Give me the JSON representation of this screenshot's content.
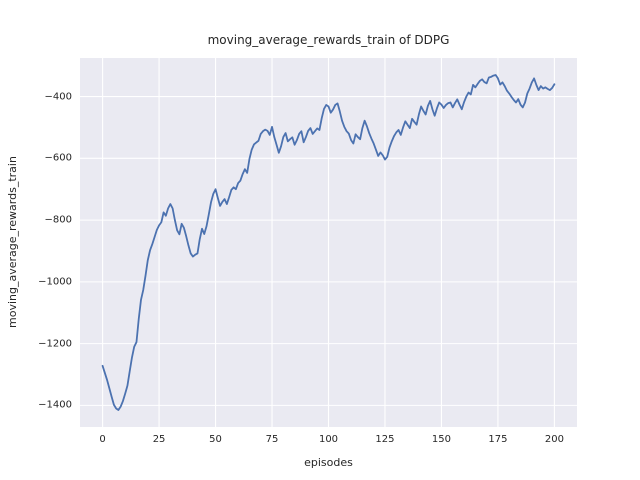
{
  "chart_data": {
    "type": "line",
    "title": "moving_average_rewards_train of DDPG",
    "xlabel": "episodes",
    "ylabel": "moving_average_rewards_train",
    "legend": null,
    "grid": true,
    "background_color": "#EAEAF2",
    "grid_color": "#FFFFFF",
    "line_color": "#4C72B0",
    "text_color": "#262626",
    "xlim": [
      -10,
      210
    ],
    "ylim": [
      -1470,
      -275
    ],
    "xticks": [
      0,
      25,
      50,
      75,
      100,
      125,
      150,
      175,
      200
    ],
    "xtick_labels": [
      "0",
      "25",
      "50",
      "75",
      "100",
      "125",
      "150",
      "175",
      "200"
    ],
    "yticks": [
      -400,
      -600,
      -800,
      -1000,
      -1200,
      -1400
    ],
    "ytick_labels": [
      "−400",
      "−600",
      "−800",
      "−1000",
      "−1200",
      "−1400"
    ],
    "x": [
      0,
      1,
      2,
      3,
      4,
      5,
      6,
      7,
      8,
      9,
      10,
      11,
      12,
      13,
      14,
      15,
      16,
      17,
      18,
      19,
      20,
      21,
      22,
      23,
      24,
      25,
      26,
      27,
      28,
      29,
      30,
      31,
      32,
      33,
      34,
      35,
      36,
      37,
      38,
      39,
      40,
      41,
      42,
      43,
      44,
      45,
      46,
      47,
      48,
      49,
      50,
      51,
      52,
      53,
      54,
      55,
      56,
      57,
      58,
      59,
      60,
      61,
      62,
      63,
      64,
      65,
      66,
      67,
      68,
      69,
      70,
      71,
      72,
      73,
      74,
      75,
      76,
      77,
      78,
      79,
      80,
      81,
      82,
      83,
      84,
      85,
      86,
      87,
      88,
      89,
      90,
      91,
      92,
      93,
      94,
      95,
      96,
      97,
      98,
      99,
      100,
      101,
      102,
      103,
      104,
      105,
      106,
      107,
      108,
      109,
      110,
      111,
      112,
      113,
      114,
      115,
      116,
      117,
      118,
      119,
      120,
      121,
      122,
      123,
      124,
      125,
      126,
      127,
      128,
      129,
      130,
      131,
      132,
      133,
      134,
      135,
      136,
      137,
      138,
      139,
      140,
      141,
      142,
      143,
      144,
      145,
      146,
      147,
      148,
      149,
      150,
      151,
      152,
      153,
      154,
      155,
      156,
      157,
      158,
      159,
      160,
      161,
      162,
      163,
      164,
      165,
      166,
      167,
      168,
      169,
      170,
      171,
      172,
      173,
      174,
      175,
      176,
      177,
      178,
      179,
      180,
      181,
      182,
      183,
      184,
      185,
      186,
      187,
      188,
      189,
      190,
      191,
      192,
      193,
      194,
      195,
      196,
      197,
      198,
      199,
      200
    ],
    "values": [
      -1272,
      -1295,
      -1318,
      -1345,
      -1372,
      -1398,
      -1410,
      -1415,
      -1404,
      -1386,
      -1362,
      -1336,
      -1290,
      -1245,
      -1210,
      -1195,
      -1120,
      -1058,
      -1026,
      -980,
      -930,
      -898,
      -878,
      -855,
      -832,
      -817,
      -807,
      -775,
      -786,
      -762,
      -748,
      -762,
      -800,
      -833,
      -846,
      -812,
      -825,
      -852,
      -882,
      -908,
      -918,
      -912,
      -908,
      -862,
      -828,
      -845,
      -820,
      -782,
      -742,
      -715,
      -700,
      -728,
      -754,
      -741,
      -732,
      -748,
      -726,
      -702,
      -694,
      -700,
      -680,
      -672,
      -651,
      -635,
      -647,
      -602,
      -572,
      -555,
      -549,
      -543,
      -521,
      -512,
      -507,
      -511,
      -524,
      -498,
      -531,
      -556,
      -582,
      -561,
      -531,
      -518,
      -545,
      -538,
      -532,
      -556,
      -541,
      -521,
      -512,
      -548,
      -531,
      -511,
      -502,
      -521,
      -512,
      -503,
      -508,
      -470,
      -440,
      -427,
      -432,
      -452,
      -442,
      -427,
      -422,
      -448,
      -478,
      -498,
      -512,
      -520,
      -541,
      -552,
      -522,
      -531,
      -538,
      -502,
      -478,
      -496,
      -518,
      -536,
      -552,
      -572,
      -592,
      -581,
      -590,
      -604,
      -595,
      -565,
      -545,
      -528,
      -516,
      -508,
      -524,
      -500,
      -480,
      -491,
      -502,
      -472,
      -482,
      -491,
      -458,
      -432,
      -446,
      -458,
      -430,
      -414,
      -441,
      -462,
      -438,
      -419,
      -426,
      -437,
      -427,
      -421,
      -419,
      -435,
      -421,
      -409,
      -426,
      -441,
      -418,
      -400,
      -387,
      -393,
      -362,
      -370,
      -359,
      -349,
      -344,
      -353,
      -357,
      -338,
      -336,
      -332,
      -330,
      -341,
      -361,
      -354,
      -366,
      -381,
      -390,
      -401,
      -411,
      -419,
      -408,
      -426,
      -435,
      -419,
      -390,
      -374,
      -354,
      -341,
      -362,
      -379,
      -366,
      -374,
      -370,
      -375,
      -379,
      -372,
      -360
    ]
  }
}
